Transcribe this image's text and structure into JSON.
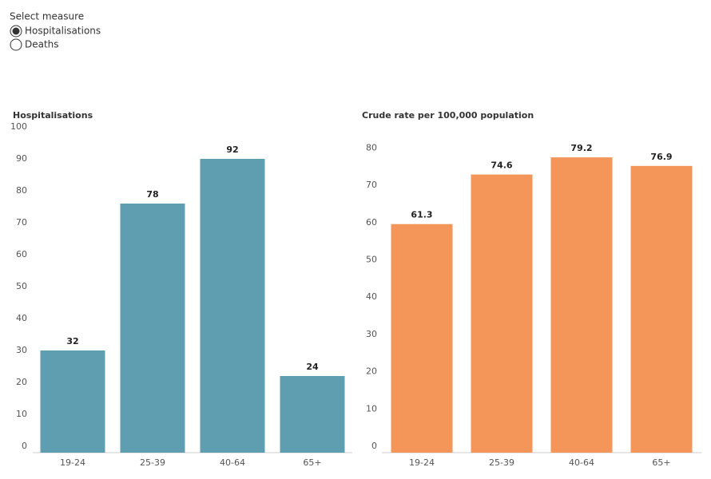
{
  "controls": {
    "label": "Select measure",
    "options": [
      "Hospitalisations",
      "Deaths"
    ],
    "selected": 0
  },
  "chart_data": [
    {
      "type": "bar",
      "title": "Hospitalisations",
      "categories": [
        "19-24",
        "25-39",
        "40-64",
        "65+"
      ],
      "values": [
        32,
        78,
        92,
        24
      ],
      "color": "#5f9db1",
      "ylim": [
        0,
        100
      ],
      "yticks": [
        0,
        10,
        20,
        30,
        40,
        50,
        60,
        70,
        80,
        90,
        100
      ]
    },
    {
      "type": "bar",
      "title": "Crude rate per 100,000 population",
      "categories": [
        "19-24",
        "25-39",
        "40-64",
        "65+"
      ],
      "values": [
        61.3,
        74.6,
        79.2,
        76.9
      ],
      "color": "#f4955a",
      "ylim": [
        0,
        85
      ],
      "yticks": [
        0,
        10,
        20,
        30,
        40,
        50,
        60,
        70,
        80
      ]
    }
  ]
}
